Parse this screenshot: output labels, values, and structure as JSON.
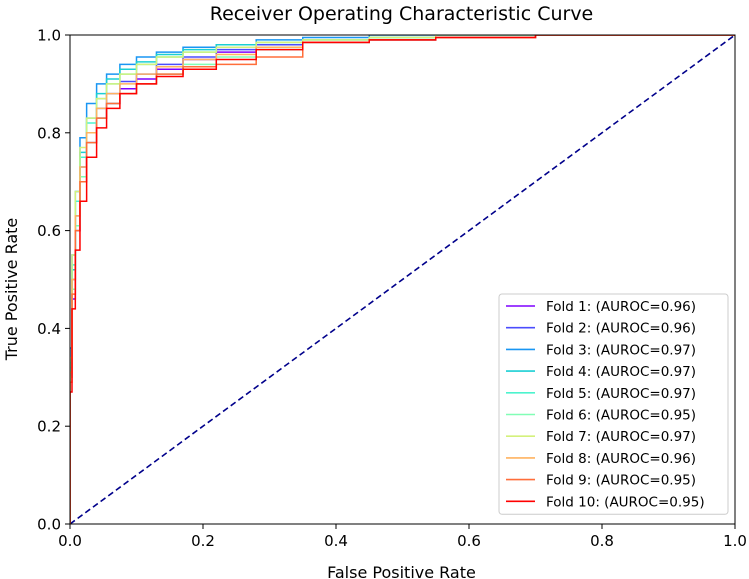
{
  "chart_data": {
    "type": "line",
    "title": "Receiver Operating Characteristic Curve",
    "xlabel": "False Positive Rate",
    "ylabel": "True Positive Rate",
    "xlim": [
      0.0,
      1.0
    ],
    "ylim": [
      0.0,
      1.0
    ],
    "xticks": [
      "0.0",
      "0.2",
      "0.4",
      "0.6",
      "0.8",
      "1.0"
    ],
    "yticks": [
      "0.0",
      "0.2",
      "0.4",
      "0.6",
      "0.8",
      "1.0"
    ],
    "legend_position": "lower-right",
    "grid": false,
    "reference_line": {
      "name": "chance",
      "style": "dashed",
      "color": "#00008b",
      "x": [
        0,
        1
      ],
      "y": [
        0,
        1
      ]
    },
    "series": [
      {
        "name": "Fold 1: (AUROC=0.96)",
        "color": "#7f00ff",
        "x": [
          0,
          0.003,
          0.008,
          0.015,
          0.025,
          0.04,
          0.055,
          0.075,
          0.1,
          0.13,
          0.17,
          0.22,
          0.28,
          0.35,
          0.45,
          0.55,
          0.7,
          0.85,
          1.0
        ],
        "y": [
          0,
          0.3,
          0.46,
          0.6,
          0.7,
          0.78,
          0.83,
          0.86,
          0.89,
          0.91,
          0.93,
          0.95,
          0.965,
          0.975,
          0.985,
          0.99,
          0.995,
          1.0,
          1.0
        ]
      },
      {
        "name": "Fold 2: (AUROC=0.96)",
        "color": "#4b4dfd",
        "x": [
          0,
          0.003,
          0.008,
          0.015,
          0.025,
          0.04,
          0.055,
          0.075,
          0.1,
          0.13,
          0.17,
          0.22,
          0.28,
          0.35,
          0.45,
          0.55,
          0.7,
          0.85,
          1.0
        ],
        "y": [
          0,
          0.32,
          0.5,
          0.63,
          0.73,
          0.8,
          0.85,
          0.88,
          0.905,
          0.92,
          0.94,
          0.955,
          0.97,
          0.98,
          0.985,
          0.99,
          0.995,
          1.0,
          1.0
        ]
      },
      {
        "name": "Fold 3: (AUROC=0.97)",
        "color": "#1996f3",
        "x": [
          0,
          0.003,
          0.008,
          0.015,
          0.025,
          0.04,
          0.055,
          0.075,
          0.1,
          0.13,
          0.17,
          0.22,
          0.28,
          0.35,
          0.45,
          0.55,
          0.7,
          0.85,
          1.0
        ],
        "y": [
          0,
          0.36,
          0.55,
          0.68,
          0.79,
          0.86,
          0.9,
          0.92,
          0.94,
          0.955,
          0.965,
          0.975,
          0.98,
          0.99,
          0.995,
          1.0,
          1.0,
          1.0,
          1.0
        ]
      },
      {
        "name": "Fold 4: (AUROC=0.97)",
        "color": "#1bcfd4",
        "x": [
          0,
          0.003,
          0.008,
          0.015,
          0.025,
          0.04,
          0.055,
          0.075,
          0.1,
          0.13,
          0.17,
          0.22,
          0.28,
          0.35,
          0.45,
          0.55,
          0.7,
          0.85,
          1.0
        ],
        "y": [
          0,
          0.33,
          0.52,
          0.66,
          0.76,
          0.83,
          0.88,
          0.91,
          0.93,
          0.945,
          0.96,
          0.97,
          0.98,
          0.985,
          0.99,
          0.995,
          1.0,
          1.0,
          1.0
        ]
      },
      {
        "name": "Fold 5: (AUROC=0.97)",
        "color": "#4df3ce",
        "x": [
          0,
          0.003,
          0.008,
          0.015,
          0.025,
          0.04,
          0.055,
          0.075,
          0.1,
          0.13,
          0.17,
          0.22,
          0.28,
          0.35,
          0.45,
          0.55,
          0.7,
          0.85,
          1.0
        ],
        "y": [
          0,
          0.34,
          0.53,
          0.66,
          0.75,
          0.82,
          0.87,
          0.9,
          0.92,
          0.94,
          0.955,
          0.965,
          0.975,
          0.985,
          0.99,
          0.995,
          0.995,
          1.0,
          1.0
        ]
      },
      {
        "name": "Fold 6: (AUROC=0.95)",
        "color": "#81feb6",
        "x": [
          0,
          0.003,
          0.008,
          0.015,
          0.025,
          0.04,
          0.055,
          0.075,
          0.1,
          0.13,
          0.17,
          0.22,
          0.28,
          0.35,
          0.45,
          0.55,
          0.7,
          0.85,
          1.0
        ],
        "y": [
          0,
          0.3,
          0.48,
          0.61,
          0.71,
          0.78,
          0.83,
          0.86,
          0.88,
          0.9,
          0.92,
          0.94,
          0.955,
          0.97,
          0.985,
          0.99,
          0.995,
          1.0,
          1.0
        ]
      },
      {
        "name": "Fold 7: (AUROC=0.97)",
        "color": "#d4f17c",
        "x": [
          0,
          0.003,
          0.008,
          0.015,
          0.025,
          0.04,
          0.055,
          0.075,
          0.1,
          0.13,
          0.17,
          0.22,
          0.28,
          0.35,
          0.45,
          0.55,
          0.7,
          0.85,
          1.0
        ],
        "y": [
          0,
          0.34,
          0.55,
          0.68,
          0.77,
          0.83,
          0.87,
          0.9,
          0.92,
          0.94,
          0.955,
          0.965,
          0.975,
          0.985,
          0.99,
          0.995,
          1.0,
          1.0,
          1.0
        ]
      },
      {
        "name": "Fold 8: (AUROC=0.96)",
        "color": "#ffb360",
        "x": [
          0,
          0.003,
          0.008,
          0.015,
          0.025,
          0.04,
          0.055,
          0.075,
          0.1,
          0.13,
          0.17,
          0.22,
          0.28,
          0.35,
          0.45,
          0.55,
          0.7,
          0.85,
          1.0
        ],
        "y": [
          0,
          0.31,
          0.5,
          0.63,
          0.73,
          0.8,
          0.85,
          0.88,
          0.9,
          0.92,
          0.935,
          0.95,
          0.96,
          0.975,
          0.985,
          0.99,
          0.995,
          1.0,
          1.0
        ]
      },
      {
        "name": "Fold 9: (AUROC=0.95)",
        "color": "#ff6e3a",
        "x": [
          0,
          0.003,
          0.008,
          0.015,
          0.025,
          0.04,
          0.055,
          0.075,
          0.1,
          0.13,
          0.17,
          0.22,
          0.28,
          0.35,
          0.45,
          0.55,
          0.7,
          0.85,
          1.0
        ],
        "y": [
          0,
          0.29,
          0.47,
          0.6,
          0.7,
          0.78,
          0.83,
          0.86,
          0.88,
          0.9,
          0.92,
          0.935,
          0.94,
          0.955,
          0.985,
          0.99,
          0.995,
          1.0,
          1.0
        ]
      },
      {
        "name": "Fold 10: (AUROC=0.95)",
        "color": "#ff0000",
        "x": [
          0,
          0.003,
          0.008,
          0.015,
          0.025,
          0.04,
          0.055,
          0.075,
          0.1,
          0.13,
          0.17,
          0.22,
          0.28,
          0.35,
          0.45,
          0.55,
          0.7,
          0.85,
          1.0
        ],
        "y": [
          0,
          0.27,
          0.44,
          0.56,
          0.66,
          0.75,
          0.81,
          0.85,
          0.88,
          0.9,
          0.915,
          0.93,
          0.95,
          0.97,
          0.985,
          0.99,
          0.995,
          1.0,
          1.0
        ]
      }
    ]
  }
}
